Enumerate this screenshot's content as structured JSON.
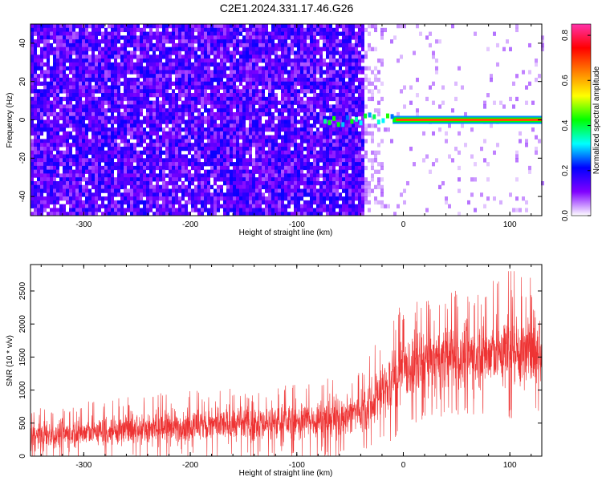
{
  "title": "C2E1.2024.331.17.46.G26",
  "chart_data": [
    {
      "type": "heatmap",
      "xlabel": "Height of straight line (km)",
      "ylabel": "Frequency (Hz)",
      "xlim": [
        -350,
        130
      ],
      "ylim": [
        -50,
        50
      ],
      "xticks": [
        -300,
        -200,
        -100,
        0,
        100
      ],
      "yticks": [
        -40,
        -20,
        0,
        20,
        40
      ],
      "signal_frequency_hz": 0,
      "noise_edge_height_km": -40,
      "colorbar": {
        "label": "Normalized spectral amplitude",
        "range": [
          0,
          0.85
        ],
        "ticks": [
          0.0,
          0.2,
          0.4,
          0.6,
          0.8
        ],
        "colormap": [
          "#ffffff",
          "#8000ff",
          "#0000ff",
          "#00ffff",
          "#00ff00",
          "#ffff00",
          "#ff8000",
          "#ff0000",
          "#ff33aa"
        ]
      }
    },
    {
      "type": "line",
      "xlabel": "Height of straight line (km)",
      "ylabel": "SNR (10 * v/v)",
      "xlim": [
        -350,
        130
      ],
      "ylim": [
        0,
        2900
      ],
      "xticks": [
        -300,
        -200,
        -100,
        0,
        100
      ],
      "yticks": [
        0,
        500,
        1000,
        1500,
        2000,
        2500
      ],
      "color": "#ee3333",
      "envelope": {
        "x": [
          -350,
          -300,
          -250,
          -200,
          -150,
          -100,
          -60,
          -40,
          -20,
          -10,
          0,
          20,
          50,
          80,
          100,
          130
        ],
        "lower": [
          0,
          20,
          40,
          60,
          80,
          100,
          120,
          200,
          300,
          400,
          550,
          700,
          750,
          750,
          700,
          750
        ],
        "upper": [
          600,
          700,
          800,
          850,
          900,
          950,
          1050,
          1200,
          1650,
          1900,
          2050,
          2150,
          2250,
          2350,
          2450,
          2450
        ],
        "peak": 2800
      }
    }
  ]
}
